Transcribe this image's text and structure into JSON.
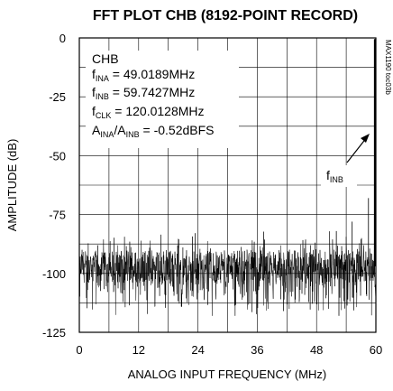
{
  "chart_data": {
    "type": "line",
    "title": "FFT PLOT CHB (8192-POINT RECORD)",
    "xlabel": "ANALOG INPUT FREQUENCY (MHz)",
    "ylabel": "AMPLITUDE (dB)",
    "xlim": [
      0,
      60
    ],
    "ylim": [
      -125,
      0
    ],
    "xticks": [
      "0",
      "12",
      "24",
      "36",
      "48",
      "60"
    ],
    "yticks": [
      "0",
      "-25",
      "-50",
      "-75",
      "-100",
      "-125"
    ],
    "grid": true,
    "noise_floor_db": -97,
    "noise_band_db": [
      -118,
      -78
    ],
    "peaks": [
      {
        "x": 59.74,
        "y": -0.5
      },
      {
        "x": 59.93,
        "y": -0.5
      },
      {
        "x": 58.5,
        "y": -68
      },
      {
        "x": 55.2,
        "y": -78
      },
      {
        "x": 52.0,
        "y": -82
      }
    ],
    "annotations": {
      "channel": "CHB",
      "f_ina": {
        "main": "f",
        "sub": "INA",
        "rest": " = 49.0189MHz"
      },
      "f_inb": {
        "main": "f",
        "sub": "INB",
        "rest": " = 59.7427MHz"
      },
      "f_clk": {
        "main": "f",
        "sub": "CLK",
        "rest": " = 120.0128MHz"
      },
      "ratio": {
        "a": "A",
        "a_sub": "INA",
        "slash": "/A",
        "b_sub": "INB",
        "rest": " = -0.52dBFS"
      },
      "peak_label": {
        "main": "f",
        "sub": "INB"
      }
    },
    "figure_code": "MAX1190 toc03b"
  }
}
